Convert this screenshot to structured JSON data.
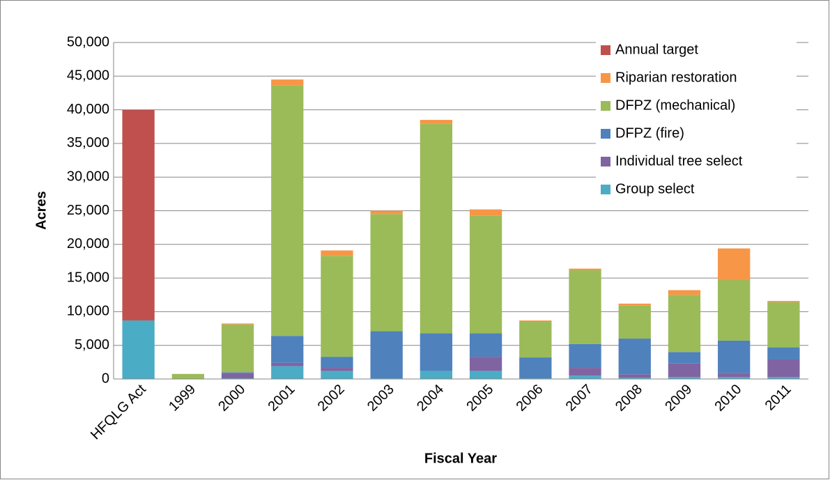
{
  "chart_data": {
    "type": "stacked-bar",
    "x_label": "Fiscal Year",
    "y_label": "Acres",
    "categories": [
      "HFQLG Act",
      "1999",
      "2000",
      "2001",
      "2002",
      "2003",
      "2004",
      "2005",
      "2006",
      "2007",
      "2008",
      "2009",
      "2010",
      "2011"
    ],
    "series": [
      {
        "name": "Group select",
        "color": "#4bacc6",
        "values": [
          8700,
          0,
          100,
          1900,
          1200,
          100,
          1200,
          1200,
          100,
          500,
          200,
          300,
          300,
          300
        ]
      },
      {
        "name": "Individual tree select",
        "color": "#8064a2",
        "values": [
          0,
          0,
          800,
          500,
          450,
          0,
          0,
          2100,
          0,
          1150,
          500,
          2000,
          600,
          2600
        ]
      },
      {
        "name": "DFPZ (fire)",
        "color": "#4f81bd",
        "values": [
          0,
          0,
          100,
          4000,
          1650,
          7000,
          5600,
          3500,
          3100,
          3550,
          5300,
          1700,
          4800,
          1800
        ]
      },
      {
        "name": "DFPZ (mechanical)",
        "color": "#9bbb59",
        "values": [
          0,
          750,
          7100,
          37200,
          15000,
          17400,
          31100,
          17500,
          5400,
          11000,
          4900,
          8500,
          9000,
          6700
        ]
      },
      {
        "name": "Riparian restoration",
        "color": "#f79646",
        "values": [
          0,
          0,
          150,
          900,
          800,
          500,
          600,
          900,
          100,
          200,
          300,
          700,
          4700,
          200
        ]
      },
      {
        "name": "Annual target",
        "color": "#c0504d",
        "values": [
          31300,
          0,
          0,
          0,
          0,
          0,
          0,
          0,
          0,
          0,
          0,
          0,
          0,
          0
        ]
      }
    ],
    "ylim": [
      0,
      50000
    ],
    "yticks": [
      0,
      {
        "value": 5000,
        "label": "5,000"
      },
      {
        "value": 10000,
        "label": "10,000"
      },
      {
        "value": 15000,
        "label": "15,000"
      },
      {
        "value": 20000,
        "label": "20,000"
      },
      {
        "value": 25000,
        "label": "25,000"
      },
      {
        "value": 30000,
        "label": "30,000"
      },
      {
        "value": 35000,
        "label": "35,000"
      },
      {
        "value": 40000,
        "label": "40,000"
      },
      {
        "value": 45000,
        "label": "45,000"
      },
      {
        "value": 50000,
        "label": "50,000"
      }
    ],
    "grid": true,
    "legend": "top-right"
  }
}
